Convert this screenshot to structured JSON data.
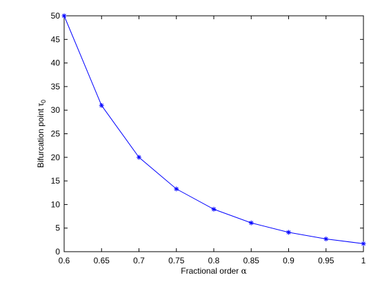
{
  "chart_data": {
    "type": "line",
    "x": [
      0.6,
      0.65,
      0.7,
      0.75,
      0.8,
      0.85,
      0.9,
      0.95,
      1.0
    ],
    "series": [
      {
        "values": [
          50,
          31,
          20,
          13.3,
          9,
          6.1,
          4.1,
          2.7,
          1.7
        ],
        "color": "#0000ff",
        "marker": "asterisk"
      }
    ],
    "xlabel_main": "Fractional order ",
    "xlabel_symbol": "α",
    "ylabel_main": "Bifurcation point τ",
    "ylabel_sub": "0",
    "xlim": [
      0.6,
      1.0
    ],
    "ylim": [
      0,
      50
    ],
    "xticks": [
      "0.6",
      "0.65",
      "0.7",
      "0.75",
      "0.8",
      "0.85",
      "0.9",
      "0.95",
      "1"
    ],
    "yticks": [
      "0",
      "5",
      "10",
      "15",
      "20",
      "25",
      "30",
      "35",
      "40",
      "45",
      "50"
    ],
    "grid": false
  }
}
